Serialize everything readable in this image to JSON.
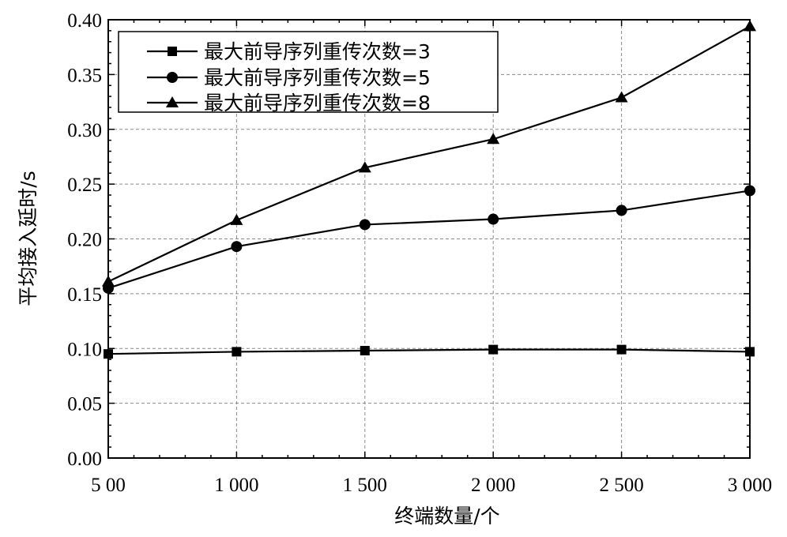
{
  "chart_data": {
    "type": "line",
    "xlabel": "终端数量/个",
    "ylabel": "平均接入延时/s",
    "x": [
      500,
      1000,
      1500,
      2000,
      2500,
      3000
    ],
    "x_tick_labels": [
      "5 00",
      "1 000",
      "1 500",
      "2 000",
      "2 500",
      "3 000"
    ],
    "xlim": [
      500,
      3000
    ],
    "ylim": [
      0,
      0.4
    ],
    "y_ticks": [
      0.0,
      0.05,
      0.1,
      0.15,
      0.2,
      0.25,
      0.3,
      0.35,
      0.4
    ],
    "y_tick_labels": [
      "0.00",
      "0.05",
      "0.10",
      "0.15",
      "0.20",
      "0.25",
      "0.30",
      "0.35",
      "0.40"
    ],
    "grid": true,
    "legend_position": "top-left",
    "series": [
      {
        "name": "最大前导序列重传次数=3",
        "marker": "square",
        "values": [
          0.095,
          0.097,
          0.098,
          0.099,
          0.099,
          0.097
        ]
      },
      {
        "name": "最大前导序列重传次数=5",
        "marker": "circle",
        "values": [
          0.155,
          0.193,
          0.213,
          0.218,
          0.226,
          0.244
        ]
      },
      {
        "name": "最大前导序列重传次数=8",
        "marker": "triangle",
        "values": [
          0.161,
          0.217,
          0.265,
          0.291,
          0.329,
          0.394
        ]
      }
    ],
    "colors": {
      "line": "#000000",
      "grid": "#8a8a8a"
    }
  }
}
